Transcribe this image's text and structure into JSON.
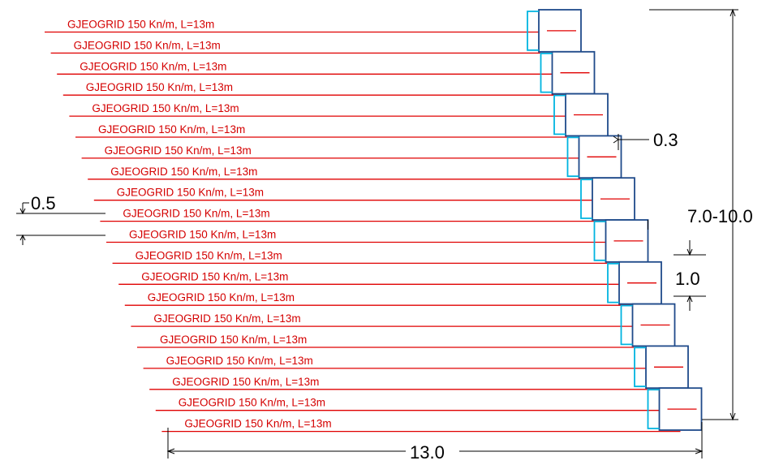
{
  "colors": {
    "geogrid": "#e00000",
    "label": "#d40000",
    "gabion_outline": "#1f4a8a",
    "facing": "#00b4e0",
    "dimension": "#000000"
  },
  "geogrid_labels": [
    "GJEOGRID 150 Kn/m, L=13m",
    "GJEOGRID 150 Kn/m, L=13m",
    "GJEOGRID 150 Kn/m, L=13m",
    "GJEOGRID 150 Kn/m, L=13m",
    "GJEOGRID 150 Kn/m, L=13m",
    "GJEOGRID 150 Kn/m, L=13m",
    "GJEOGRID 150 Kn/m, L=13m",
    "GJEOGRID 150 Kn/m, L=13m",
    "GJEOGRID 150 Kn/m, L=13m",
    "GJEOGRID 150 Kn/m, L=13m",
    "GJEOGRID 150 Kn/m, L=13m",
    "GJEOGRID 150 Kn/m, L=13m",
    "GJEOGRID 150 Kn/m, L=13m",
    "GJEOGRID 150 Kn/m, L=13m",
    "GJEOGRID 150 Kn/m, L=13m",
    "GJEOGRID 150 Kn/m, L=13m",
    "GJEOGRID 150 Kn/m, L=13m",
    "GJEOGRID 150 Kn/m, L=13m",
    "GJEOGRID 150 Kn/m, L=13m",
    "GJEOGRID 150 Kn/m, L=13m"
  ],
  "dimensions": {
    "setback": "0.3",
    "layer_spacing": "0.5",
    "wall_height": "7.0-10.0",
    "block_height": "1.0",
    "base_length": "13.0"
  }
}
